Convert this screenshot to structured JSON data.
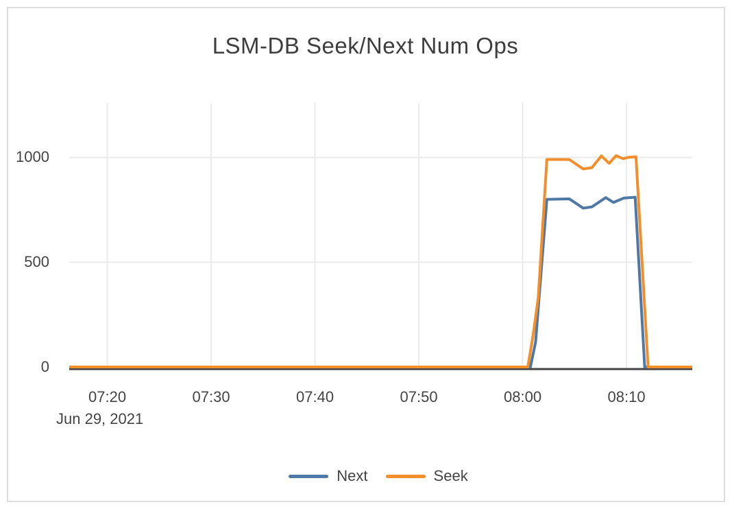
{
  "chart_data": {
    "type": "line",
    "title": "LSM-DB Seek/Next Num Ops",
    "x_axis": {
      "range": [
        "07:16:20",
        "08:16:20"
      ],
      "ticks": [
        "07:20",
        "07:30",
        "07:40",
        "07:50",
        "08:00",
        "08:10"
      ],
      "date_label": "Jun 29, 2021"
    },
    "y_axis": {
      "range": [
        0,
        1260
      ],
      "ticks": [
        0,
        500,
        1000
      ]
    },
    "grid": true,
    "legend_position": "bottom-center",
    "series": [
      {
        "name": "Next",
        "color": "#4E79A7",
        "points": [
          [
            "07:16:20",
            0
          ],
          [
            "08:00:45",
            0
          ],
          [
            "08:01:15",
            120
          ],
          [
            "08:02:20",
            800
          ],
          [
            "08:04:30",
            802
          ],
          [
            "08:05:50",
            758
          ],
          [
            "08:06:40",
            764
          ],
          [
            "08:08:00",
            808
          ],
          [
            "08:08:45",
            785
          ],
          [
            "08:09:45",
            806
          ],
          [
            "08:10:50",
            810
          ],
          [
            "08:11:45",
            0
          ],
          [
            "08:16:20",
            0
          ]
        ]
      },
      {
        "name": "Seek",
        "color": "#F28E2B",
        "points": [
          [
            "07:16:20",
            0
          ],
          [
            "08:00:30",
            0
          ],
          [
            "08:01:00",
            150
          ],
          [
            "08:01:30",
            330
          ],
          [
            "08:02:20",
            990
          ],
          [
            "08:04:30",
            990
          ],
          [
            "08:05:50",
            945
          ],
          [
            "08:06:40",
            951
          ],
          [
            "08:07:35",
            1007
          ],
          [
            "08:08:20",
            972
          ],
          [
            "08:09:00",
            1008
          ],
          [
            "08:09:40",
            994
          ],
          [
            "08:10:10",
            1000
          ],
          [
            "08:10:55",
            1003
          ],
          [
            "08:12:05",
            0
          ],
          [
            "08:16:20",
            0
          ]
        ]
      }
    ],
    "style": {
      "grid_color": "#ebebeb",
      "zero_line_color": "#444444",
      "axis_text_color": "#444444",
      "title_color": "#3d3d3d",
      "card_border_color": "#dddddd",
      "background_color": "#ffffff"
    }
  }
}
